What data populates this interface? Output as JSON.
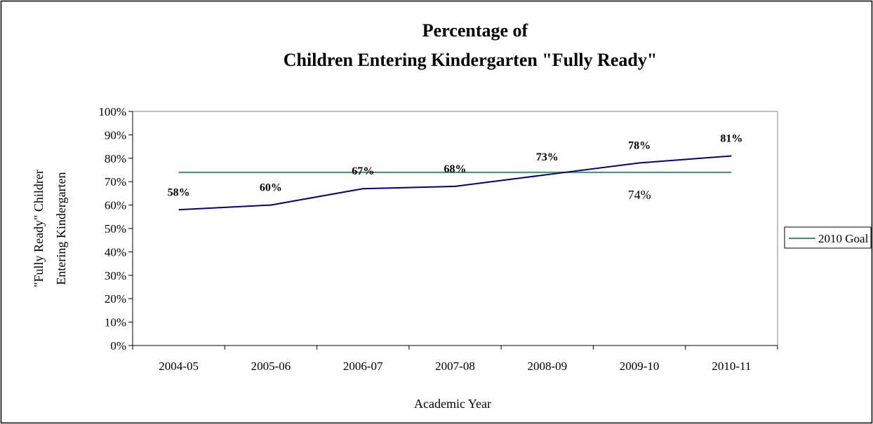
{
  "chart_data": {
    "type": "line",
    "title_line1": "Percentage of",
    "title_line2": "Children Entering Kindergarten \"Fully Ready\"",
    "xlabel": "Academic Year",
    "ylabel_line1": "\"Fully Ready\" Childrer",
    "ylabel_line2": "Entering Kindergarten",
    "categories": [
      "2004-05",
      "2005-06",
      "2006-07",
      "2007-08",
      "2008-09",
      "2009-10",
      "2010-11"
    ],
    "ylim": [
      0,
      100
    ],
    "ytick_labels": [
      "0%",
      "10%",
      "20%",
      "30%",
      "40%",
      "50%",
      "60%",
      "70%",
      "80%",
      "90%",
      "100%"
    ],
    "grid": false,
    "legend_position": "right",
    "series": [
      {
        "values": [
          58,
          60,
          67,
          68,
          73,
          78,
          81
        ],
        "labels": [
          "58%",
          "60%",
          "67%",
          "68%",
          "73%",
          "78%",
          "81%"
        ],
        "color": "#000080"
      },
      {
        "name": "2010 Goal",
        "values": [
          74,
          74,
          74,
          74,
          74,
          74,
          74
        ],
        "label": "74%",
        "color": "#339966"
      }
    ]
  }
}
